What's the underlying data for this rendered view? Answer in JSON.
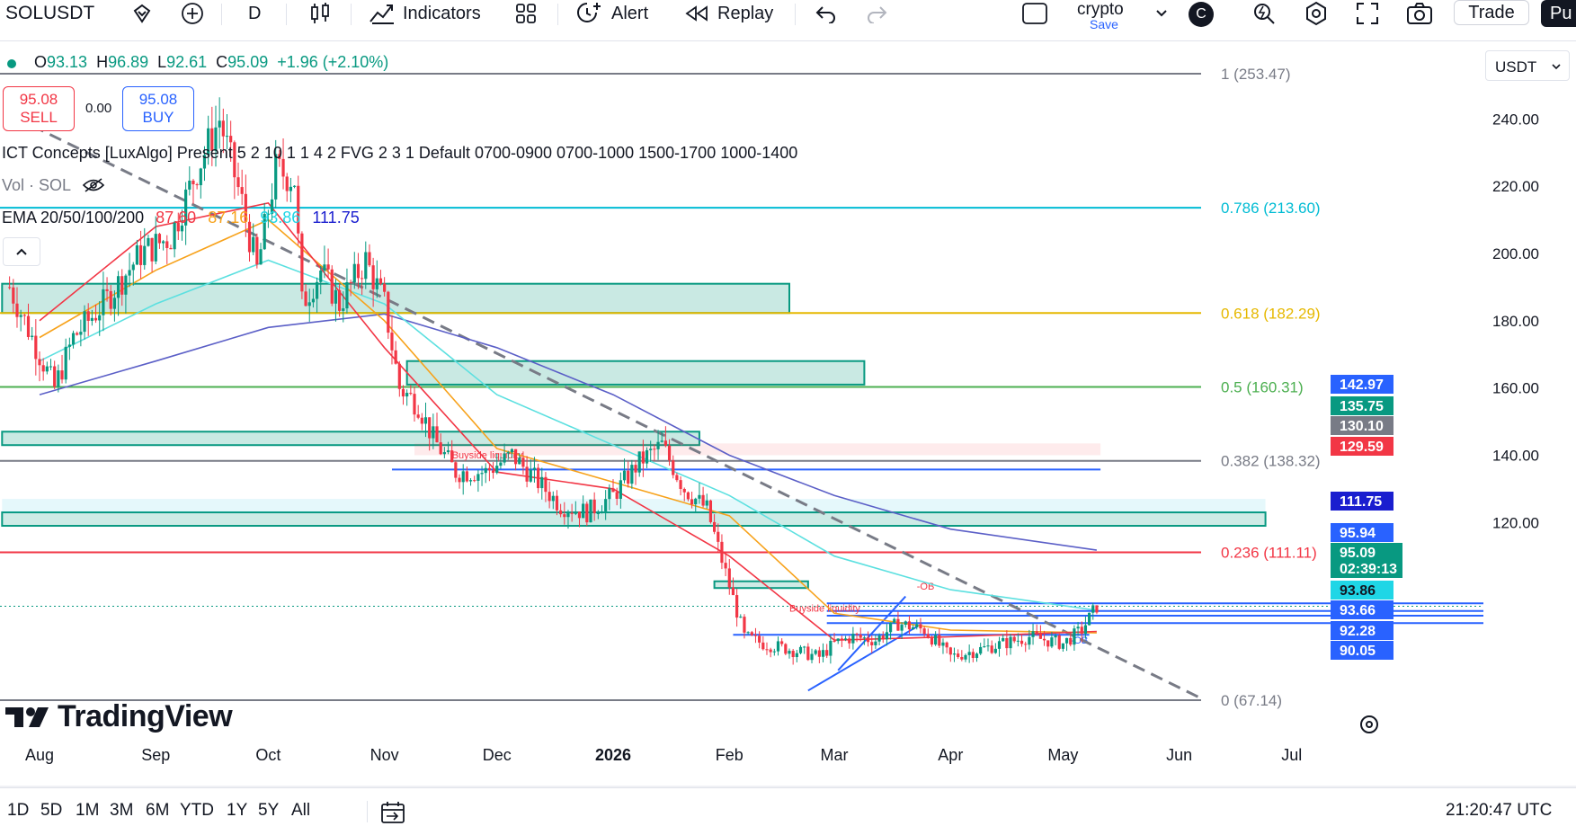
{
  "toolbar": {
    "symbol": "SOLUSDT",
    "interval": "D",
    "indicators_label": "Indicators",
    "alert_label": "Alert",
    "replay_label": "Replay",
    "layout_name": "crypto",
    "save_label": "Save",
    "account_initial": "C",
    "trade_label": "Trade",
    "publish_label": "Pu"
  },
  "legend": {
    "o_label": "O",
    "o": "93.13",
    "h_label": "H",
    "h": "96.89",
    "l_label": "L",
    "l": "92.61",
    "c_label": "C",
    "c": "95.09",
    "change": "+1.96 (+2.10%)",
    "sell_price": "95.08",
    "sell_label": "SELL",
    "spread": "0.00",
    "buy_price": "95.08",
    "buy_label": "BUY",
    "indicator_ict": "ICT Concepts [LuxAlgo] Present 5 2 10 1 1 4 2 FVG 2 3 1 Default 0700-0900 0700-1000 1500-1700 1000-1400",
    "volume_label": "Vol · SOL",
    "ema_label": "EMA 20/50/100/200",
    "ema_values": [
      "87.60",
      "87.16",
      "93.86",
      "111.75"
    ]
  },
  "currency_button": "USDT",
  "watermark": "TradingView",
  "colors": {
    "up": "#089981",
    "down": "#f23645",
    "ema20": "#f23645",
    "ema50": "#f7a21b",
    "ema100": "#5ce0e0",
    "ema200": "#5b5fc7",
    "fib_786": "#00bcd4",
    "fib_618": "#e6b800",
    "fib_5": "#4caf50",
    "fib_382": "#787b86",
    "fib_236": "#f23645",
    "fib_0_1": "#787b86",
    "ob_zone": "#089981",
    "liquidity": "#2962ff"
  },
  "chart_data": {
    "type": "candlestick",
    "symbol": "SOLUSDT",
    "interval": "D",
    "ylim": [
      62,
      256
    ],
    "y_ticks": [
      120,
      140,
      160,
      180,
      200,
      220,
      240
    ],
    "y_tick_labels": [
      "120.00",
      "140.00",
      "160.00",
      "180.00",
      "200.00",
      "220.00",
      "240.00"
    ],
    "x_ticks": [
      "Aug",
      "Sep",
      "Oct",
      "Nov",
      "Dec",
      "2026",
      "Feb",
      "Mar",
      "Apr",
      "May",
      "Jun",
      "Jul"
    ],
    "price_series": [
      [
        "Jul 24",
        190
      ],
      [
        "Aug 1",
        170
      ],
      [
        "Aug 5",
        160
      ],
      [
        "Aug 10",
        175
      ],
      [
        "Aug 18",
        185
      ],
      [
        "Aug 28",
        200
      ],
      [
        "Sep 5",
        205
      ],
      [
        "Sep 12",
        225
      ],
      [
        "Sep 18",
        240
      ],
      [
        "Sep 24",
        215
      ],
      [
        "Sep 28",
        195
      ],
      [
        "Oct 3",
        225
      ],
      [
        "Oct 8",
        222
      ],
      [
        "Oct 10",
        185
      ],
      [
        "Oct 15",
        195
      ],
      [
        "Oct 20",
        185
      ],
      [
        "Oct 27",
        198
      ],
      [
        "Nov 1",
        185
      ],
      [
        "Nov 5",
        160
      ],
      [
        "Nov 10",
        155
      ],
      [
        "Nov 14",
        145
      ],
      [
        "Nov 20",
        135
      ],
      [
        "Nov 28",
        135
      ],
      [
        "Dec 5",
        140
      ],
      [
        "Dec 12",
        132
      ],
      [
        "Dec 18",
        125
      ],
      [
        "Dec 25",
        123
      ],
      [
        "Jan 1",
        128
      ],
      [
        "Jan 8",
        138
      ],
      [
        "Jan 14",
        143
      ],
      [
        "Jan 20",
        130
      ],
      [
        "Jan 26",
        124
      ],
      [
        "Jan 31",
        105
      ],
      [
        "Feb 5",
        86
      ],
      [
        "Feb 10",
        84
      ],
      [
        "Feb 18",
        82
      ],
      [
        "Feb 25",
        80
      ],
      [
        "Mar 1",
        84
      ],
      [
        "Mar 6",
        86
      ],
      [
        "Mar 12",
        85
      ],
      [
        "Mar 18",
        90
      ],
      [
        "Mar 25",
        88
      ],
      [
        "Apr 1",
        80
      ],
      [
        "Apr 8",
        82
      ],
      [
        "Apr 15",
        84
      ],
      [
        "Apr 22",
        86
      ],
      [
        "May 1",
        84
      ],
      [
        "May 6",
        88
      ],
      [
        "May 10",
        95.09
      ]
    ],
    "ema_200": [
      [
        "Aug 1",
        158
      ],
      [
        "Sep 1",
        168
      ],
      [
        "Oct 1",
        178
      ],
      [
        "Nov 1",
        182
      ],
      [
        "Dec 1",
        172
      ],
      [
        "Jan 1",
        158
      ],
      [
        "Feb 1",
        140
      ],
      [
        "Mar 1",
        128
      ],
      [
        "Apr 1",
        118
      ],
      [
        "May 10",
        111.75
      ]
    ],
    "ema_100": [
      [
        "Aug 1",
        168
      ],
      [
        "Sep 1",
        185
      ],
      [
        "Oct 1",
        198
      ],
      [
        "Nov 1",
        185
      ],
      [
        "Dec 1",
        158
      ],
      [
        "Jan 1",
        143
      ],
      [
        "Feb 1",
        128
      ],
      [
        "Mar 1",
        110
      ],
      [
        "Apr 1",
        100
      ],
      [
        "May 10",
        93.86
      ]
    ],
    "ema_50": [
      [
        "Aug 1",
        175
      ],
      [
        "Sep 1",
        195
      ],
      [
        "Oct 1",
        210
      ],
      [
        "Nov 1",
        180
      ],
      [
        "Dec 1",
        142
      ],
      [
        "Jan 1",
        132
      ],
      [
        "Feb 1",
        122
      ],
      [
        "Mar 1",
        93
      ],
      [
        "Apr 1",
        88
      ],
      [
        "May 10",
        87.16
      ]
    ],
    "ema_20": [
      [
        "Aug 1",
        180
      ],
      [
        "Sep 1",
        208
      ],
      [
        "Oct 1",
        215
      ],
      [
        "Nov 1",
        172
      ],
      [
        "Dec 1",
        135
      ],
      [
        "Jan 1",
        130
      ],
      [
        "Feb 1",
        110
      ],
      [
        "Mar 1",
        85
      ],
      [
        "Apr 1",
        86
      ],
      [
        "May 10",
        87.6
      ]
    ],
    "fib_levels": [
      {
        "label": "1 (253.47)",
        "value": 253.47
      },
      {
        "label": "0.786 (213.60)",
        "value": 213.6
      },
      {
        "label": "0.618 (182.29)",
        "value": 182.29
      },
      {
        "label": "0.5 (160.31)",
        "value": 160.31
      },
      {
        "label": "0.382 (138.32)",
        "value": 138.32
      },
      {
        "label": "0.236 (111.11)",
        "value": 111.11
      },
      {
        "label": "0 (67.14)",
        "value": 67.14
      }
    ],
    "annotations": [
      "Buyside liquidity",
      "Buyside liquidity",
      "-OB",
      "-OB"
    ],
    "price_labels": [
      {
        "text": "142.97",
        "value": 142.97,
        "bg": "#2962ff",
        "fg": "#ffffff"
      },
      {
        "text": "135.75",
        "value": 135.75,
        "bg": "#089981",
        "fg": "#ffffff"
      },
      {
        "text": "130.10",
        "value": 130.1,
        "bg": "#787b86",
        "fg": "#ffffff"
      },
      {
        "text": "129.59",
        "value": 129.59,
        "bg": "#f23645",
        "fg": "#ffffff"
      },
      {
        "text": "111.75",
        "value": 111.75,
        "bg": "#1a1ecf",
        "fg": "#ffffff"
      },
      {
        "text": "95.94",
        "value": 95.94,
        "bg": "#2962ff",
        "fg": "#ffffff"
      },
      {
        "text": "95.09",
        "value": 95.09,
        "bg": "#089981",
        "fg": "#ffffff"
      },
      {
        "text": "02:39:13",
        "value": 95.09,
        "bg": "#089981",
        "fg": "#ffffff"
      },
      {
        "text": "93.86",
        "value": 93.86,
        "bg": "#1fd6e6",
        "fg": "#131722"
      },
      {
        "text": "93.66",
        "value": 93.66,
        "bg": "#2962ff",
        "fg": "#ffffff"
      },
      {
        "text": "92.28",
        "value": 92.28,
        "bg": "#2962ff",
        "fg": "#ffffff"
      },
      {
        "text": "90.05",
        "value": 90.05,
        "bg": "#2962ff",
        "fg": "#ffffff"
      }
    ]
  },
  "bottombar": {
    "ranges": [
      "1D",
      "5D",
      "1M",
      "3M",
      "6M",
      "YTD",
      "1Y",
      "5Y",
      "All"
    ],
    "clock": "21:20:47 UTC"
  }
}
